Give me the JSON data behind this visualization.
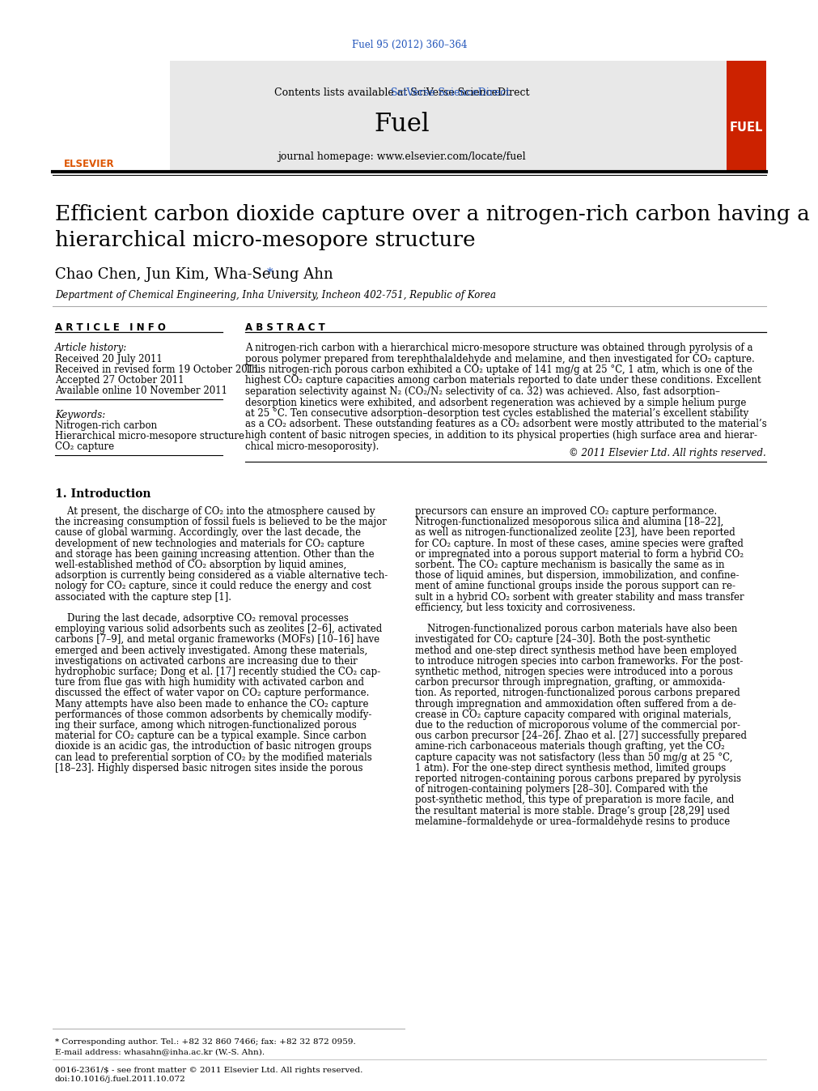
{
  "journal_ref": "Fuel 95 (2012) 360–364",
  "header_text": "Contents lists available at SciVerse ScienceDirect",
  "journal_name": "Fuel",
  "journal_url": "journal homepage: www.elsevier.com/locate/fuel",
  "title": "Efficient carbon dioxide capture over a nitrogen-rich carbon having a\nhierarchical micro-mesopore structure",
  "authors": "Chao Chen, Jun Kim, Wha-Seung Ahn",
  "affiliation": "Department of Chemical Engineering, Inha University, Incheon 402-751, Republic of Korea",
  "article_info_label": "A R T I C L E   I N F O",
  "abstract_label": "A B S T R A C T",
  "article_history_label": "Article history:",
  "received1": "Received 20 July 2011",
  "received2": "Received in revised form 19 October 2011",
  "accepted": "Accepted 27 October 2011",
  "available": "Available online 10 November 2011",
  "keywords_label": "Keywords:",
  "keyword1": "Nitrogen-rich carbon",
  "keyword2": "Hierarchical micro-mesopore structure",
  "keyword3": "CO₂ capture",
  "copyright": "© 2011 Elsevier Ltd. All rights reserved.",
  "intro_heading": "1. Introduction",
  "footer_corresponding": "* Corresponding author. Tel.: +82 32 860 7466; fax: +82 32 872 0959.",
  "footer_email": "E-mail address: whasahn@inha.ac.kr (W.-S. Ahn).",
  "footer_issn": "0016-2361/$ - see front matter © 2011 Elsevier Ltd. All rights reserved.",
  "footer_doi": "doi:10.1016/j.fuel.2011.10.072",
  "bg_color": "#ffffff",
  "header_bg": "#e8e8e8",
  "link_color": "#2255bb",
  "fuel_red": "#cc2200",
  "text_color": "#000000",
  "gray_line": "#888888",
  "abstract_lines": [
    "A nitrogen-rich carbon with a hierarchical micro-mesopore structure was obtained through pyrolysis of a",
    "porous polymer prepared from terephthalaldehyde and melamine, and then investigated for CO₂ capture.",
    "This nitrogen-rich porous carbon exhibited a CO₂ uptake of 141 mg/g at 25 °C, 1 atm, which is one of the",
    "highest CO₂ capture capacities among carbon materials reported to date under these conditions. Excellent",
    "separation selectivity against N₂ (CO₂/N₂ selectivity of ca. 32) was achieved. Also, fast adsorption–",
    "desorption kinetics were exhibited, and adsorbent regeneration was achieved by a simple helium purge",
    "at 25 °C. Ten consecutive adsorption–desorption test cycles established the material’s excellent stability",
    "as a CO₂ adsorbent. These outstanding features as a CO₂ adsorbent were mostly attributed to the material’s",
    "high content of basic nitrogen species, in addition to its physical properties (high surface area and hierar-",
    "chical micro-mesoporosity)."
  ],
  "intro_col1_lines": [
    "    At present, the discharge of CO₂ into the atmosphere caused by",
    "the increasing consumption of fossil fuels is believed to be the major",
    "cause of global warming. Accordingly, over the last decade, the",
    "development of new technologies and materials for CO₂ capture",
    "and storage has been gaining increasing attention. Other than the",
    "well-established method of CO₂ absorption by liquid amines,",
    "adsorption is currently being considered as a viable alternative tech-",
    "nology for CO₂ capture, since it could reduce the energy and cost",
    "associated with the capture step [1].",
    "    During the last decade, adsorptive CO₂ removal processes",
    "employing various solid adsorbents such as zeolites [2–6], activated",
    "carbons [7–9], and metal organic frameworks (MOFs) [10–16] have",
    "emerged and been actively investigated. Among these materials,",
    "investigations on activated carbons are increasing due to their",
    "hydrophobic surface; Dong et al. [17] recently studied the CO₂ cap-",
    "ture from flue gas with high humidity with activated carbon and",
    "discussed the effect of water vapor on CO₂ capture performance.",
    "Many attempts have also been made to enhance the CO₂ capture",
    "performances of those common adsorbents by chemically modify-",
    "ing their surface, among which nitrogen-functionalized porous",
    "material for CO₂ capture can be a typical example. Since carbon",
    "dioxide is an acidic gas, the introduction of basic nitrogen groups",
    "can lead to preferential sorption of CO₂ by the modified materials",
    "[18–23]. Highly dispersed basic nitrogen sites inside the porous"
  ],
  "intro_col2_lines": [
    "precursors can ensure an improved CO₂ capture performance.",
    "Nitrogen-functionalized mesoporous silica and alumina [18–22],",
    "as well as nitrogen-functionalized zeolite [23], have been reported",
    "for CO₂ capture. In most of these cases, amine species were grafted",
    "or impregnated into a porous support material to form a hybrid CO₂",
    "sorbent. The CO₂ capture mechanism is basically the same as in",
    "those of liquid amines, but dispersion, immobilization, and confine-",
    "ment of amine functional groups inside the porous support can re-",
    "sult in a hybrid CO₂ sorbent with greater stability and mass transfer",
    "efficiency, but less toxicity and corrosiveness.",
    "    Nitrogen-functionalized porous carbon materials have also been",
    "investigated for CO₂ capture [24–30]. Both the post-synthetic",
    "method and one-step direct synthesis method have been employed",
    "to introduce nitrogen species into carbon frameworks. For the post-",
    "synthetic method, nitrogen species were introduced into a porous",
    "carbon precursor through impregnation, grafting, or ammoxida-",
    "tion. As reported, nitrogen-functionalized porous carbons prepared",
    "through impregnation and ammoxidation often suffered from a de-",
    "crease in CO₂ capture capacity compared with original materials,",
    "due to the reduction of microporous volume of the commercial por-",
    "ous carbon precursor [24–26]. Zhao et al. [27] successfully prepared",
    "amine-rich carbonaceous materials though grafting, yet the CO₂",
    "capture capacity was not satisfactory (less than 50 mg/g at 25 °C,",
    "1 atm). For the one-step direct synthesis method, limited groups",
    "reported nitrogen-containing porous carbons prepared by pyrolysis",
    "of nitrogen-containing polymers [28–30]. Compared with the",
    "post-synthetic method, this type of preparation is more facile, and",
    "the resultant material is more stable. Drage’s group [28,29] used",
    "melamine–formaldehyde or urea–formaldehyde resins to produce"
  ]
}
